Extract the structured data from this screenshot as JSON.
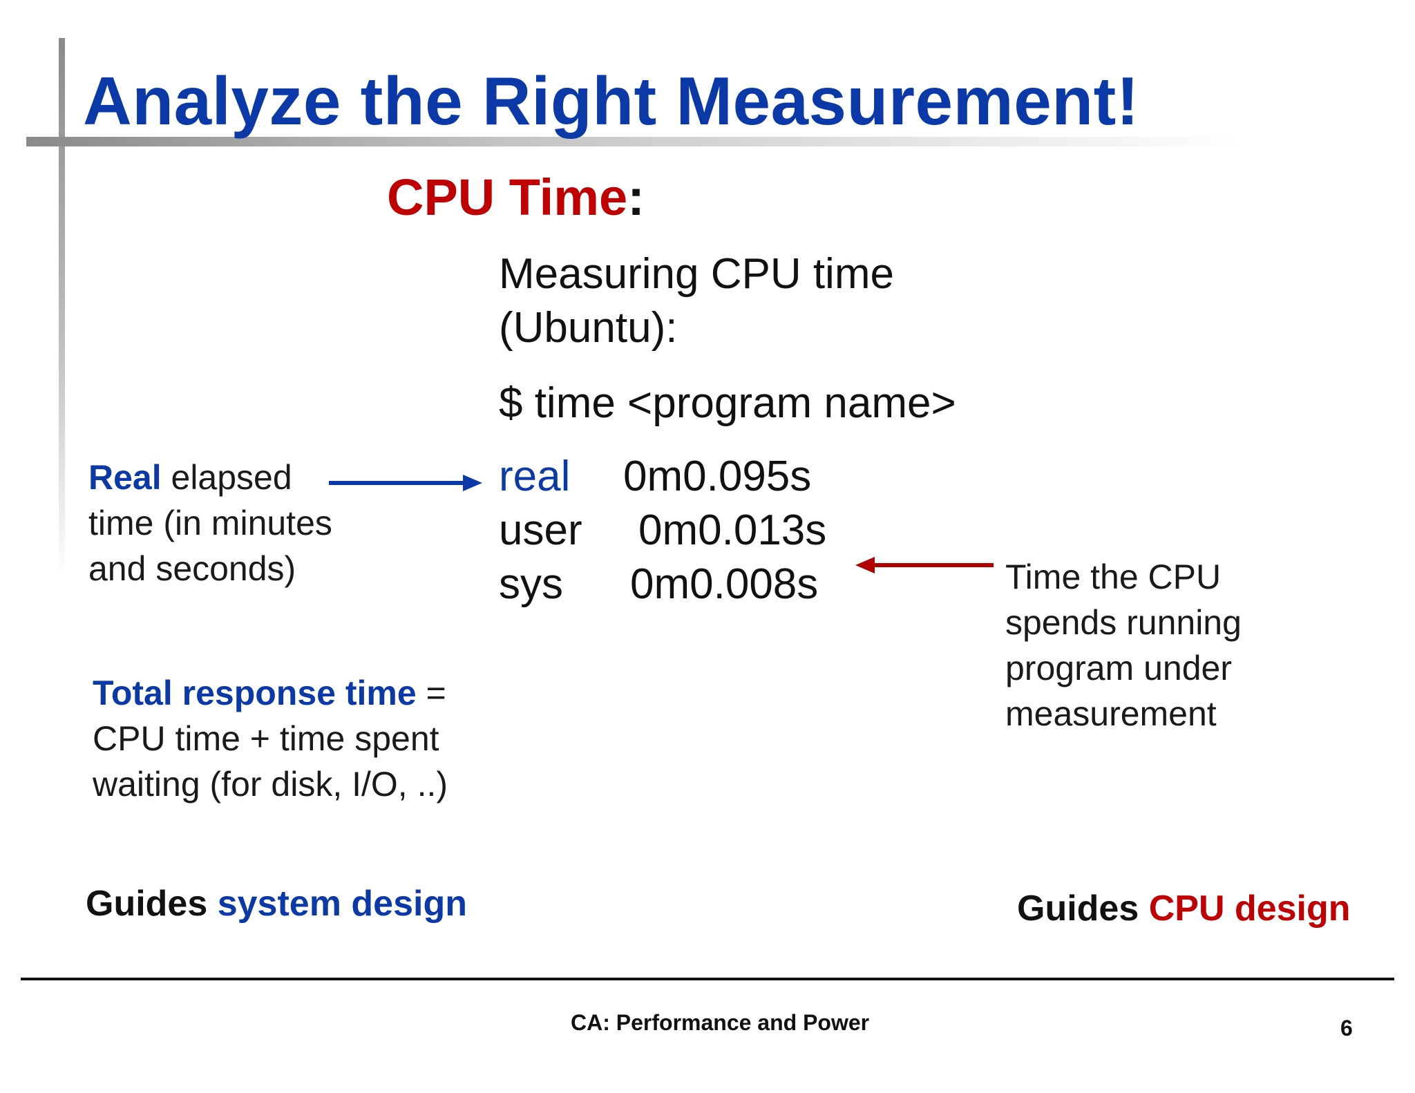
{
  "slide": {
    "title": "Analyze the Right Measurement!",
    "heading": {
      "main": "CPU Time",
      "colon": ":"
    },
    "measuring": {
      "line1": "Measuring CPU time",
      "line2": "(Ubuntu):"
    },
    "command": "$ time <program name>",
    "time_output": [
      {
        "label": "real",
        "value": "0m0.095s"
      },
      {
        "label": "user",
        "value": "0m0.013s"
      },
      {
        "label": "sys",
        "value": "0m0.008s"
      }
    ],
    "note_real": {
      "bold": "Real",
      "rest1": " elapsed",
      "line2": "time (in minutes",
      "line3": "and seconds)"
    },
    "note_cpu": {
      "line1": "Time the CPU",
      "line2": "spends running",
      "line3": "program under",
      "line4": "measurement"
    },
    "note_total": {
      "bold": "Total response time",
      "rest1": " =",
      "line2": "CPU time + time spent",
      "line3": "waiting (for disk, I/O, ..)"
    },
    "guide_left": {
      "prefix": "Guides ",
      "highlight": "system design"
    },
    "guide_right": {
      "prefix": "Guides ",
      "highlight": "CPU design"
    }
  },
  "footer": {
    "title": "CA: Performance and Power",
    "page": "6"
  },
  "colors": {
    "title_blue": "#0b3aa8",
    "accent_red": "#c00000",
    "text": "#111111"
  },
  "icons": {
    "left_arrow": "arrow-right-blue",
    "right_arrow": "arrow-left-red"
  }
}
